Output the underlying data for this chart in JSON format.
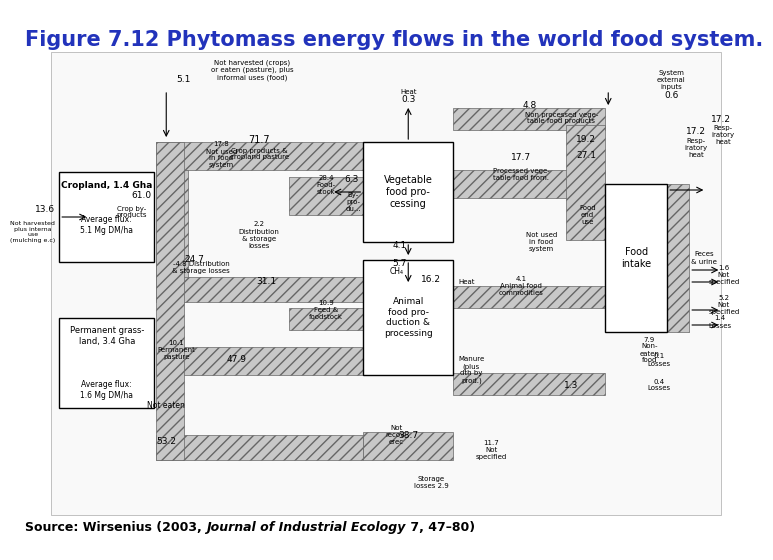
{
  "title": "Figure 7.12 Phytomass energy flows in the world food system.",
  "title_color": "#2233BB",
  "title_fontsize": 15,
  "source_bold": "Source: Wirsenius (2003, ",
  "source_italic": "Journal of Industrial Ecology",
  "source_end": " 7, 47–80)",
  "source_fontsize": 9,
  "bg_color": "#ffffff",
  "hatch": "///",
  "gray": "#c8c8c8",
  "dgray": "#666666",
  "white": "#ffffff",
  "black": "#000000"
}
